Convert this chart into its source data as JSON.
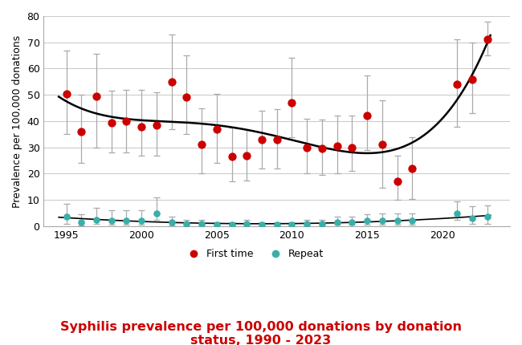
{
  "ft_years": [
    1995,
    1996,
    1997,
    1998,
    1999,
    2000,
    2001,
    2002,
    2003,
    2004,
    2005,
    2006,
    2007,
    2008,
    2009,
    2010,
    2011,
    2012,
    2013,
    2014,
    2015,
    2016,
    2017,
    2018,
    2021,
    2022,
    2023
  ],
  "first_time_values": [
    50.5,
    36,
    49.5,
    39.5,
    40,
    38,
    38.5,
    55,
    49,
    31,
    37,
    26.5,
    27,
    33,
    33,
    47,
    30,
    29.5,
    30.5,
    30,
    42,
    31,
    17,
    22,
    54,
    56,
    71
  ],
  "first_time_ci_low": [
    35,
    24,
    30,
    28,
    28,
    27,
    27,
    37,
    35,
    20,
    24,
    17,
    17.5,
    22,
    22,
    34,
    20,
    19.5,
    20,
    21,
    29,
    14.5,
    10,
    10.5,
    38,
    43,
    65
  ],
  "first_time_ci_high": [
    67,
    50,
    65.5,
    51.5,
    52,
    52,
    51,
    73,
    65,
    45,
    50.5,
    37.5,
    37,
    44,
    44.5,
    64,
    41,
    40.5,
    42,
    42,
    57.5,
    48,
    27,
    34,
    71,
    70,
    78
  ],
  "rp_years": [
    1995,
    1996,
    1997,
    1998,
    1999,
    2000,
    2001,
    2002,
    2003,
    2004,
    2005,
    2006,
    2007,
    2008,
    2009,
    2010,
    2011,
    2012,
    2013,
    2014,
    2015,
    2016,
    2017,
    2018,
    2021,
    2022,
    2023
  ],
  "repeat_values": [
    3.5,
    1.5,
    2.5,
    2,
    2,
    2,
    5,
    1.5,
    1,
    1,
    0.5,
    0.5,
    1,
    0.5,
    0.5,
    0.5,
    1,
    1,
    1.5,
    1.5,
    2,
    2,
    2,
    2,
    5,
    3,
    3.5
  ],
  "repeat_ci_low": [
    1,
    0.2,
    1,
    0.5,
    0.5,
    0.5,
    2.5,
    0.3,
    0.2,
    0.2,
    0,
    0,
    0.2,
    0,
    0,
    0,
    0.3,
    0.3,
    0.5,
    0.5,
    0.5,
    0.5,
    0.5,
    0.5,
    2.5,
    1,
    1
  ],
  "repeat_ci_high": [
    8.5,
    4.5,
    7,
    6,
    6,
    6,
    11,
    3.5,
    2.5,
    2.5,
    1.5,
    1.5,
    2.5,
    1.5,
    1.5,
    1.5,
    2.5,
    2.5,
    3.5,
    3.5,
    4.5,
    5,
    5,
    5,
    9.5,
    7.5,
    8
  ],
  "first_time_color": "#cc0000",
  "repeat_color": "#3aafa9",
  "trend_color": "#000000",
  "ylabel": "Prevalence per 100,000 donations",
  "ylim": [
    0,
    80
  ],
  "yticks": [
    0,
    10,
    20,
    30,
    40,
    50,
    60,
    70,
    80
  ],
  "xlim": [
    1993.5,
    2024.5
  ],
  "xticks": [
    1995,
    2000,
    2005,
    2010,
    2015,
    2020
  ],
  "title_line1": "Syphilis prevalence per 100,000 donations by donation",
  "title_line2": "status, 1990 - 2023",
  "title_color": "#cc0000",
  "title_fontsize": 11.5,
  "legend_first": "First time",
  "legend_repeat": "Repeat",
  "background_color": "#ffffff",
  "grid_color": "#cccccc"
}
